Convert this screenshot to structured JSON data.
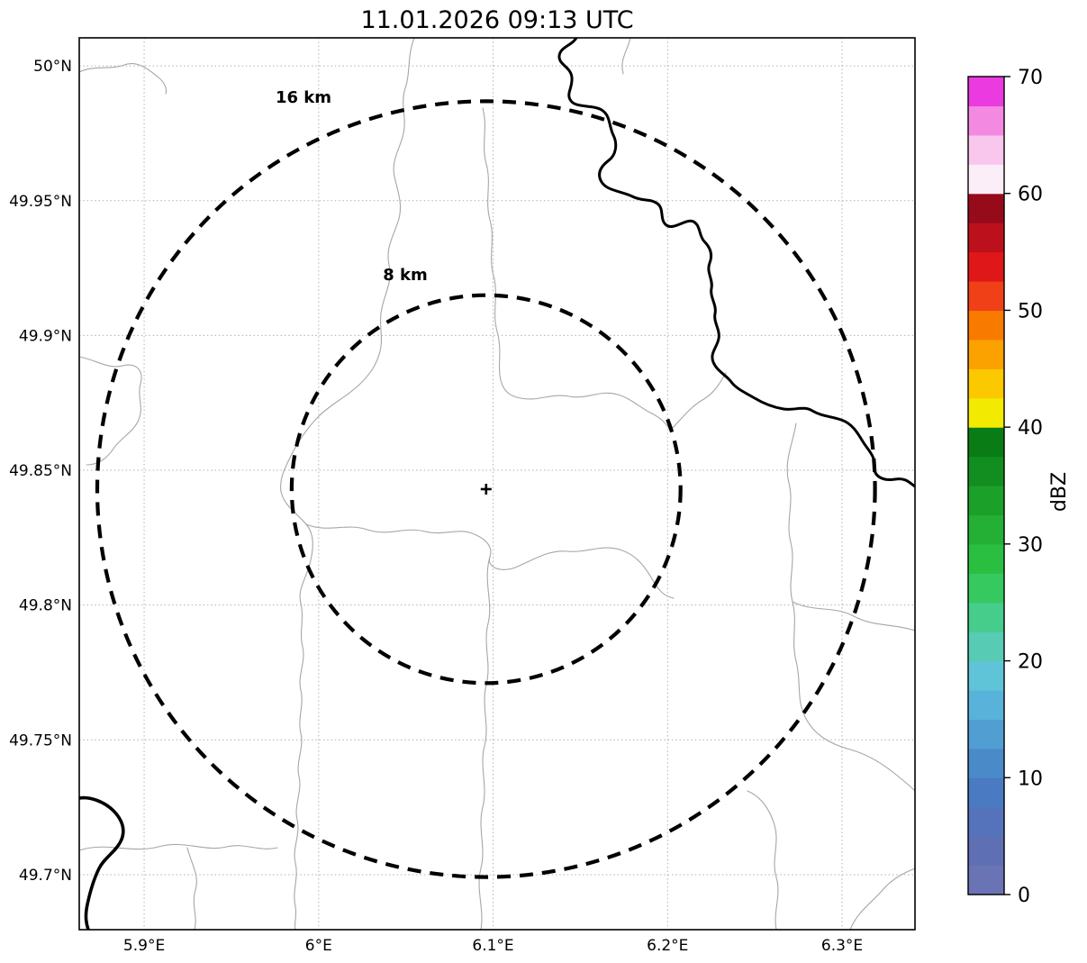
{
  "title": "11.01.2026 09:13 UTC",
  "chart_data": {
    "type": "map",
    "subtype": "weather-radar-coverage-map",
    "title": "11.01.2026 09:13 UTC",
    "x_ticks": [
      "5.9°E",
      "6°E",
      "6.1°E",
      "6.2°E",
      "6.3°E"
    ],
    "x_tick_values": [
      5.9,
      6.0,
      6.1,
      6.2,
      6.3
    ],
    "y_ticks": [
      "50°N",
      "49.95°N",
      "49.9°N",
      "49.85°N",
      "49.8°N",
      "49.75°N",
      "49.7°N"
    ],
    "y_tick_values": [
      50.0,
      49.95,
      49.9,
      49.85,
      49.8,
      49.75,
      49.7
    ],
    "xlim": [
      5.8628,
      6.3418
    ],
    "ylim": [
      49.6796,
      50.0104
    ],
    "grid": true,
    "radar_center": {
      "lon": 6.096,
      "lat": 49.843,
      "marker": "+"
    },
    "range_rings": [
      {
        "label": "8 km",
        "radius_km": 8
      },
      {
        "label": "16 km",
        "radius_km": 16
      }
    ],
    "colorbar": {
      "label": "dBZ",
      "min": 0,
      "max": 70,
      "ticks": [
        0,
        10,
        20,
        30,
        40,
        50,
        60,
        70
      ],
      "colors_bottom_to_top": [
        "#6a74b4",
        "#5f6fb4",
        "#5473bb",
        "#4a7ac1",
        "#4a8ac9",
        "#519ed2",
        "#58b2da",
        "#5fc4d8",
        "#57cbb4",
        "#46cc8b",
        "#36c95f",
        "#2bbf41",
        "#23b034",
        "#1ba02a",
        "#128e20",
        "#0a7c16",
        "#f2ea00",
        "#fcc800",
        "#fba100",
        "#f87b00",
        "#f04018",
        "#e01718",
        "#bc101c",
        "#960b1a",
        "#fceef8",
        "#f9c7ee",
        "#f489e2",
        "#ea3ae0"
      ]
    },
    "style": {
      "background": "#ffffff",
      "gridline_color": "#b0b0b0",
      "range_ring_color": "#000000",
      "national_border_color": "#000000",
      "admin_boundary_color": "#a6a6a6"
    }
  }
}
